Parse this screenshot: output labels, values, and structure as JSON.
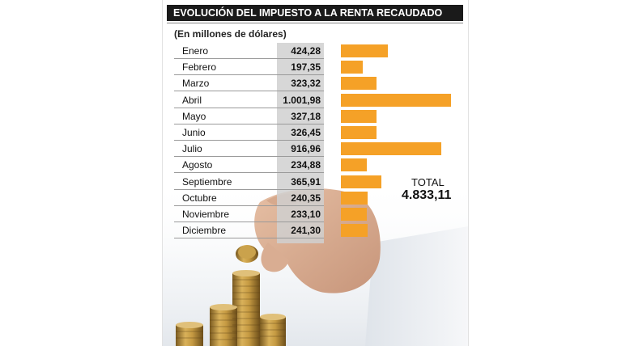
{
  "chart_data": {
    "type": "bar",
    "orientation": "horizontal",
    "title": "EVOLUCIÓN DEL IMPUESTO A LA RENTA RECAUDADO",
    "subtitle": "(En millones de dólares)",
    "categories": [
      "Enero",
      "Febrero",
      "Marzo",
      "Abril",
      "Mayo",
      "Junio",
      "Julio",
      "Agosto",
      "Septiembre",
      "Octubre",
      "Noviembre",
      "Diciembre"
    ],
    "values": [
      424.28,
      197.35,
      323.32,
      1001.98,
      327.18,
      326.45,
      916.96,
      234.88,
      365.91,
      240.35,
      233.1,
      241.3
    ],
    "value_labels": [
      "424,28",
      "197,35",
      "323,32",
      "1.001,98",
      "327,18",
      "326,45",
      "916,96",
      "234,88",
      "365,91",
      "240,35",
      "233,10",
      "241,30"
    ],
    "total_label": "TOTAL",
    "total_value": "4.833,11",
    "bar_color": "#f5a127",
    "grid": false,
    "legend": "none"
  }
}
